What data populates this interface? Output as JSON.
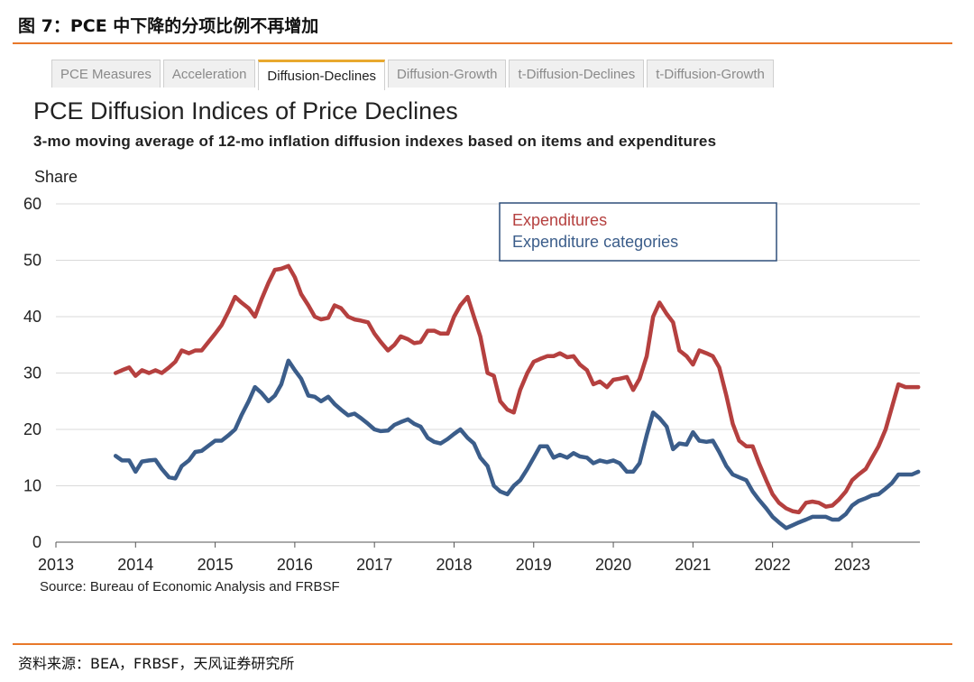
{
  "figure_title": "图 7：PCE 中下降的分项比例不再增加",
  "tabs": [
    {
      "label": "PCE Measures",
      "active": false
    },
    {
      "label": "Acceleration",
      "active": false
    },
    {
      "label": "Diffusion-Declines",
      "active": true
    },
    {
      "label": "Diffusion-Growth",
      "active": false
    },
    {
      "label": "t-Diffusion-Declines",
      "active": false
    },
    {
      "label": "t-Diffusion-Growth",
      "active": false
    }
  ],
  "source_note": "Source: Bureau of Economic Analysis and FRBSF",
  "footer_source": "资料来源：BEA，FRBSF，天风证券研究所",
  "colors": {
    "accent": "#e8782a",
    "expenditures": "#b5403f",
    "categories": "#3b5d8a"
  },
  "chart_data": {
    "type": "line",
    "title": "PCE Diffusion Indices of Price Declines",
    "subtitle": "3-mo moving average  of 12-mo inflation diffusion indexes based on items and expenditures",
    "ylabel": "Share",
    "xlabel": "",
    "ylim": [
      0,
      60
    ],
    "xlim": [
      2013,
      2023.85
    ],
    "yticks": [
      "0",
      "10",
      "20",
      "30",
      "40",
      "50",
      "60"
    ],
    "xticks": [
      "2013",
      "2014",
      "2015",
      "2016",
      "2017",
      "2018",
      "2019",
      "2020",
      "2021",
      "2022",
      "2023"
    ],
    "grid": "horizontal",
    "legend_position": "top-right",
    "series": [
      {
        "name": "Expenditures",
        "color": "#b5403f",
        "points": [
          [
            2013.75,
            30.0
          ],
          [
            2013.83,
            30.5
          ],
          [
            2013.92,
            31.0
          ],
          [
            2014.0,
            29.5
          ],
          [
            2014.08,
            30.5
          ],
          [
            2014.17,
            30.0
          ],
          [
            2014.25,
            30.5
          ],
          [
            2014.33,
            30.0
          ],
          [
            2014.42,
            31.0
          ],
          [
            2014.5,
            32.0
          ],
          [
            2014.58,
            34.0
          ],
          [
            2014.67,
            33.5
          ],
          [
            2014.75,
            34.0
          ],
          [
            2014.83,
            34.0
          ],
          [
            2015.0,
            37.0
          ],
          [
            2015.08,
            38.5
          ],
          [
            2015.17,
            41.0
          ],
          [
            2015.25,
            43.5
          ],
          [
            2015.33,
            42.5
          ],
          [
            2015.42,
            41.5
          ],
          [
            2015.5,
            40.0
          ],
          [
            2015.58,
            43.0
          ],
          [
            2015.67,
            46.0
          ],
          [
            2015.75,
            48.3
          ],
          [
            2015.83,
            48.5
          ],
          [
            2015.92,
            49.0
          ],
          [
            2016.0,
            47.0
          ],
          [
            2016.08,
            44.0
          ],
          [
            2016.17,
            42.0
          ],
          [
            2016.25,
            40.0
          ],
          [
            2016.33,
            39.5
          ],
          [
            2016.42,
            39.8
          ],
          [
            2016.5,
            42.0
          ],
          [
            2016.58,
            41.5
          ],
          [
            2016.67,
            40.0
          ],
          [
            2016.75,
            39.5
          ],
          [
            2016.83,
            39.3
          ],
          [
            2016.92,
            39.0
          ],
          [
            2017.0,
            37.0
          ],
          [
            2017.08,
            35.5
          ],
          [
            2017.17,
            34.0
          ],
          [
            2017.25,
            35.0
          ],
          [
            2017.33,
            36.5
          ],
          [
            2017.42,
            36.0
          ],
          [
            2017.5,
            35.3
          ],
          [
            2017.58,
            35.5
          ],
          [
            2017.67,
            37.5
          ],
          [
            2017.75,
            37.5
          ],
          [
            2017.83,
            37.0
          ],
          [
            2017.92,
            37.0
          ],
          [
            2018.0,
            40.0
          ],
          [
            2018.08,
            42.0
          ],
          [
            2018.17,
            43.5
          ],
          [
            2018.25,
            40.0
          ],
          [
            2018.33,
            36.5
          ],
          [
            2018.42,
            30.0
          ],
          [
            2018.5,
            29.5
          ],
          [
            2018.58,
            25.0
          ],
          [
            2018.67,
            23.5
          ],
          [
            2018.75,
            23.0
          ],
          [
            2018.83,
            27.0
          ],
          [
            2018.92,
            30.0
          ],
          [
            2019.0,
            32.0
          ],
          [
            2019.08,
            32.5
          ],
          [
            2019.17,
            33.0
          ],
          [
            2019.25,
            33.0
          ],
          [
            2019.33,
            33.5
          ],
          [
            2019.42,
            32.8
          ],
          [
            2019.5,
            33.0
          ],
          [
            2019.58,
            31.5
          ],
          [
            2019.67,
            30.5
          ],
          [
            2019.75,
            28.0
          ],
          [
            2019.83,
            28.5
          ],
          [
            2019.92,
            27.5
          ],
          [
            2020.0,
            28.8
          ],
          [
            2020.08,
            29.0
          ],
          [
            2020.17,
            29.3
          ],
          [
            2020.25,
            27.0
          ],
          [
            2020.33,
            29.0
          ],
          [
            2020.42,
            33.0
          ],
          [
            2020.5,
            40.0
          ],
          [
            2020.58,
            42.5
          ],
          [
            2020.67,
            40.5
          ],
          [
            2020.75,
            39.0
          ],
          [
            2020.83,
            34.0
          ],
          [
            2020.92,
            33.0
          ],
          [
            2021.0,
            31.5
          ],
          [
            2021.08,
            34.0
          ],
          [
            2021.17,
            33.5
          ],
          [
            2021.25,
            33.0
          ],
          [
            2021.33,
            31.0
          ],
          [
            2021.42,
            26.0
          ],
          [
            2021.5,
            21.0
          ],
          [
            2021.58,
            18.0
          ],
          [
            2021.67,
            17.0
          ],
          [
            2021.75,
            17.0
          ],
          [
            2021.83,
            14.0
          ],
          [
            2021.92,
            11.0
          ],
          [
            2022.0,
            8.5
          ],
          [
            2022.08,
            7.0
          ],
          [
            2022.17,
            6.0
          ],
          [
            2022.25,
            5.5
          ],
          [
            2022.33,
            5.3
          ],
          [
            2022.42,
            7.0
          ],
          [
            2022.5,
            7.2
          ],
          [
            2022.58,
            7.0
          ],
          [
            2022.67,
            6.3
          ],
          [
            2022.75,
            6.5
          ],
          [
            2022.83,
            7.5
          ],
          [
            2022.92,
            9.0
          ],
          [
            2023.0,
            11.0
          ],
          [
            2023.08,
            12.0
          ],
          [
            2023.17,
            13.0
          ],
          [
            2023.25,
            15.0
          ],
          [
            2023.33,
            17.0
          ],
          [
            2023.42,
            20.0
          ],
          [
            2023.5,
            24.0
          ],
          [
            2023.58,
            28.0
          ],
          [
            2023.67,
            27.5
          ],
          [
            2023.75,
            27.5
          ],
          [
            2023.83,
            27.5
          ]
        ]
      },
      {
        "name": "Expenditure  categories",
        "color": "#3b5d8a",
        "points": [
          [
            2013.75,
            15.3
          ],
          [
            2013.83,
            14.5
          ],
          [
            2013.92,
            14.5
          ],
          [
            2014.0,
            12.5
          ],
          [
            2014.08,
            14.3
          ],
          [
            2014.17,
            14.5
          ],
          [
            2014.25,
            14.6
          ],
          [
            2014.33,
            13.0
          ],
          [
            2014.42,
            11.5
          ],
          [
            2014.5,
            11.3
          ],
          [
            2014.58,
            13.5
          ],
          [
            2014.67,
            14.5
          ],
          [
            2014.75,
            16.0
          ],
          [
            2014.83,
            16.2
          ],
          [
            2015.0,
            18.0
          ],
          [
            2015.08,
            18.0
          ],
          [
            2015.17,
            19.0
          ],
          [
            2015.25,
            20.0
          ],
          [
            2015.33,
            22.5
          ],
          [
            2015.42,
            25.0
          ],
          [
            2015.5,
            27.5
          ],
          [
            2015.58,
            26.5
          ],
          [
            2015.67,
            25.0
          ],
          [
            2015.75,
            26.0
          ],
          [
            2015.83,
            28.0
          ],
          [
            2015.92,
            32.2
          ],
          [
            2016.0,
            30.5
          ],
          [
            2016.08,
            29.0
          ],
          [
            2016.17,
            26.0
          ],
          [
            2016.25,
            25.8
          ],
          [
            2016.33,
            25.0
          ],
          [
            2016.42,
            25.8
          ],
          [
            2016.5,
            24.5
          ],
          [
            2016.58,
            23.5
          ],
          [
            2016.67,
            22.5
          ],
          [
            2016.75,
            22.8
          ],
          [
            2016.83,
            22.0
          ],
          [
            2016.92,
            21.0
          ],
          [
            2017.0,
            20.0
          ],
          [
            2017.08,
            19.7
          ],
          [
            2017.17,
            19.8
          ],
          [
            2017.25,
            20.8
          ],
          [
            2017.33,
            21.3
          ],
          [
            2017.42,
            21.8
          ],
          [
            2017.5,
            21.0
          ],
          [
            2017.58,
            20.5
          ],
          [
            2017.67,
            18.5
          ],
          [
            2017.75,
            17.8
          ],
          [
            2017.83,
            17.5
          ],
          [
            2017.92,
            18.3
          ],
          [
            2018.0,
            19.2
          ],
          [
            2018.08,
            20.0
          ],
          [
            2018.17,
            18.5
          ],
          [
            2018.25,
            17.5
          ],
          [
            2018.33,
            15.0
          ],
          [
            2018.42,
            13.5
          ],
          [
            2018.5,
            10.0
          ],
          [
            2018.58,
            9.0
          ],
          [
            2018.67,
            8.5
          ],
          [
            2018.75,
            10.0
          ],
          [
            2018.83,
            11.0
          ],
          [
            2018.92,
            13.0
          ],
          [
            2019.0,
            15.0
          ],
          [
            2019.08,
            17.0
          ],
          [
            2019.17,
            17.0
          ],
          [
            2019.25,
            15.0
          ],
          [
            2019.33,
            15.5
          ],
          [
            2019.42,
            15.0
          ],
          [
            2019.5,
            15.8
          ],
          [
            2019.58,
            15.2
          ],
          [
            2019.67,
            15.0
          ],
          [
            2019.75,
            14.0
          ],
          [
            2019.83,
            14.5
          ],
          [
            2019.92,
            14.2
          ],
          [
            2020.0,
            14.5
          ],
          [
            2020.08,
            14.0
          ],
          [
            2020.17,
            12.5
          ],
          [
            2020.25,
            12.5
          ],
          [
            2020.33,
            14.0
          ],
          [
            2020.42,
            19.0
          ],
          [
            2020.5,
            23.0
          ],
          [
            2020.58,
            22.0
          ],
          [
            2020.67,
            20.5
          ],
          [
            2020.75,
            16.5
          ],
          [
            2020.83,
            17.5
          ],
          [
            2020.92,
            17.3
          ],
          [
            2021.0,
            19.5
          ],
          [
            2021.08,
            18.0
          ],
          [
            2021.17,
            17.8
          ],
          [
            2021.25,
            18.0
          ],
          [
            2021.33,
            16.0
          ],
          [
            2021.42,
            13.5
          ],
          [
            2021.5,
            12.0
          ],
          [
            2021.58,
            11.5
          ],
          [
            2021.67,
            11.0
          ],
          [
            2021.75,
            9.0
          ],
          [
            2021.83,
            7.5
          ],
          [
            2021.92,
            6.0
          ],
          [
            2022.0,
            4.5
          ],
          [
            2022.08,
            3.5
          ],
          [
            2022.17,
            2.5
          ],
          [
            2022.25,
            3.0
          ],
          [
            2022.33,
            3.5
          ],
          [
            2022.42,
            4.0
          ],
          [
            2022.5,
            4.5
          ],
          [
            2022.58,
            4.5
          ],
          [
            2022.67,
            4.5
          ],
          [
            2022.75,
            4.0
          ],
          [
            2022.83,
            4.0
          ],
          [
            2022.92,
            5.0
          ],
          [
            2023.0,
            6.5
          ],
          [
            2023.08,
            7.3
          ],
          [
            2023.17,
            7.8
          ],
          [
            2023.25,
            8.3
          ],
          [
            2023.33,
            8.5
          ],
          [
            2023.42,
            9.5
          ],
          [
            2023.5,
            10.5
          ],
          [
            2023.58,
            12.0
          ],
          [
            2023.67,
            12.0
          ],
          [
            2023.75,
            12.0
          ],
          [
            2023.83,
            12.5
          ]
        ]
      }
    ]
  }
}
